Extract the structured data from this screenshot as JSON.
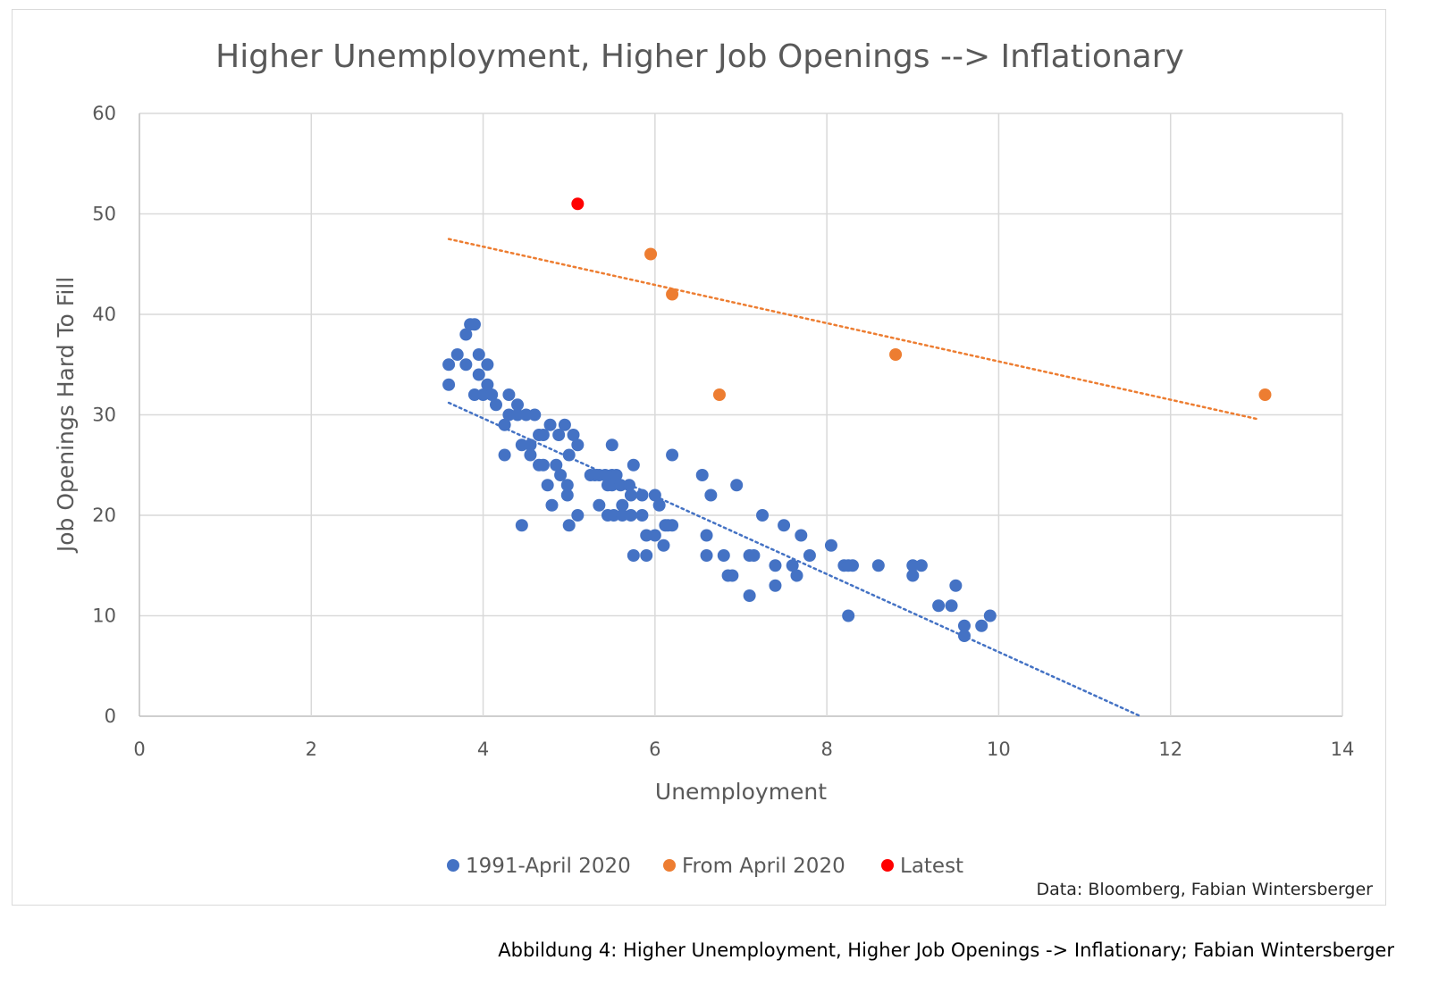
{
  "caption": "Abbildung 4: Higher Unemployment, Higher Job Openings -> Inflationary; Fabian Wintersberger",
  "chart_data": {
    "type": "scatter",
    "title": "Higher Unemployment, Higher Job Openings --> Inflationary",
    "xlabel": "Unemployment",
    "ylabel": "Job Openings Hard To Fill",
    "xlim": [
      0,
      14
    ],
    "ylim": [
      0,
      60
    ],
    "xticks": [
      0,
      2,
      4,
      6,
      8,
      10,
      12,
      14
    ],
    "yticks": [
      0,
      10,
      20,
      30,
      40,
      50,
      60
    ],
    "grid": true,
    "legend_position": "bottom",
    "source": "Data: Bloomberg, Fabian Wintersberger",
    "series": [
      {
        "name": "1991-April 2020",
        "color": "#4472c4",
        "points": [
          [
            3.6,
            35
          ],
          [
            3.6,
            33
          ],
          [
            3.7,
            36
          ],
          [
            3.8,
            38
          ],
          [
            3.8,
            35
          ],
          [
            3.85,
            39
          ],
          [
            3.9,
            39
          ],
          [
            3.9,
            32
          ],
          [
            3.95,
            36
          ],
          [
            3.95,
            34
          ],
          [
            4.0,
            32
          ],
          [
            4.05,
            35
          ],
          [
            4.05,
            33
          ],
          [
            4.1,
            32
          ],
          [
            4.15,
            31
          ],
          [
            4.25,
            29
          ],
          [
            4.25,
            26
          ],
          [
            4.3,
            32
          ],
          [
            4.3,
            30
          ],
          [
            4.4,
            31
          ],
          [
            4.4,
            30
          ],
          [
            4.45,
            27
          ],
          [
            4.45,
            19
          ],
          [
            4.5,
            30
          ],
          [
            4.55,
            27
          ],
          [
            4.55,
            26
          ],
          [
            4.6,
            30
          ],
          [
            4.65,
            28
          ],
          [
            4.65,
            25
          ],
          [
            4.7,
            28
          ],
          [
            4.7,
            25
          ],
          [
            4.75,
            23
          ],
          [
            4.78,
            29
          ],
          [
            4.8,
            21
          ],
          [
            4.85,
            25
          ],
          [
            4.88,
            28
          ],
          [
            4.9,
            24
          ],
          [
            4.95,
            29
          ],
          [
            4.98,
            23
          ],
          [
            4.98,
            22
          ],
          [
            5.0,
            26
          ],
          [
            5.0,
            19
          ],
          [
            5.05,
            28
          ],
          [
            5.1,
            27
          ],
          [
            5.1,
            20
          ],
          [
            5.25,
            24
          ],
          [
            5.3,
            24
          ],
          [
            5.35,
            24
          ],
          [
            5.35,
            21
          ],
          [
            5.42,
            24
          ],
          [
            5.45,
            23
          ],
          [
            5.45,
            20
          ],
          [
            5.5,
            27
          ],
          [
            5.5,
            24
          ],
          [
            5.5,
            23
          ],
          [
            5.52,
            20
          ],
          [
            5.55,
            24
          ],
          [
            5.6,
            23
          ],
          [
            5.62,
            21
          ],
          [
            5.62,
            20
          ],
          [
            5.7,
            23
          ],
          [
            5.72,
            22
          ],
          [
            5.72,
            20
          ],
          [
            5.75,
            25
          ],
          [
            5.75,
            16
          ],
          [
            5.85,
            22
          ],
          [
            5.85,
            20
          ],
          [
            5.9,
            18
          ],
          [
            5.9,
            16
          ],
          [
            6.0,
            22
          ],
          [
            6.0,
            18
          ],
          [
            6.05,
            21
          ],
          [
            6.1,
            17
          ],
          [
            6.12,
            19
          ],
          [
            6.15,
            19
          ],
          [
            6.2,
            26
          ],
          [
            6.2,
            19
          ],
          [
            6.55,
            24
          ],
          [
            6.6,
            18
          ],
          [
            6.6,
            16
          ],
          [
            6.65,
            22
          ],
          [
            6.8,
            16
          ],
          [
            6.85,
            14
          ],
          [
            6.9,
            14
          ],
          [
            6.95,
            23
          ],
          [
            7.1,
            16
          ],
          [
            7.1,
            12
          ],
          [
            7.15,
            16
          ],
          [
            7.25,
            20
          ],
          [
            7.4,
            15
          ],
          [
            7.4,
            13
          ],
          [
            7.5,
            19
          ],
          [
            7.6,
            15
          ],
          [
            7.65,
            14
          ],
          [
            7.7,
            18
          ],
          [
            7.8,
            16
          ],
          [
            8.05,
            17
          ],
          [
            8.2,
            15
          ],
          [
            8.25,
            15
          ],
          [
            8.25,
            10
          ],
          [
            8.3,
            15
          ],
          [
            8.6,
            15
          ],
          [
            9.0,
            15
          ],
          [
            9.0,
            14
          ],
          [
            9.1,
            15
          ],
          [
            9.3,
            11
          ],
          [
            9.45,
            11
          ],
          [
            9.5,
            13
          ],
          [
            9.6,
            9
          ],
          [
            9.6,
            8
          ],
          [
            9.8,
            9
          ],
          [
            9.9,
            10
          ]
        ],
        "trendline": [
          [
            3.6,
            31.2
          ],
          [
            11.65,
            0
          ]
        ]
      },
      {
        "name": "From April 2020",
        "color": "#ed7d31",
        "points": [
          [
            5.95,
            46
          ],
          [
            6.2,
            42
          ],
          [
            6.75,
            32
          ],
          [
            8.8,
            36
          ],
          [
            13.1,
            32
          ]
        ],
        "trendline": [
          [
            3.6,
            47.5
          ],
          [
            13.0,
            29.6
          ]
        ]
      },
      {
        "name": "Latest",
        "color": "#ff0000",
        "points": [
          [
            5.1,
            51
          ]
        ]
      }
    ]
  }
}
